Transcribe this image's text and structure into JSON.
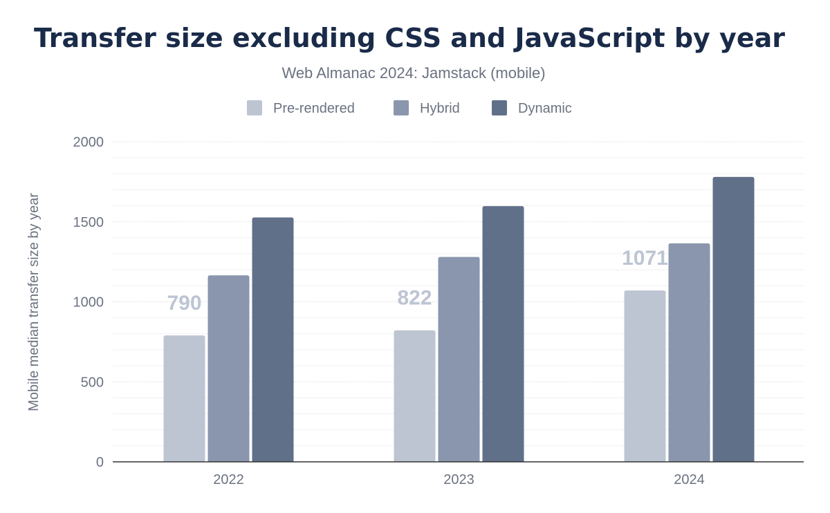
{
  "chart_data": {
    "type": "bar",
    "title": "Transfer size excluding CSS and JavaScript by year",
    "subtitle": "Web Almanac 2024: Jamstack (mobile)",
    "xlabel": "",
    "ylabel": "Mobile median transfer size by year",
    "ylim": [
      0,
      2000
    ],
    "yticks": [
      0,
      500,
      1000,
      1500,
      2000
    ],
    "grid": true,
    "legend_position": "top",
    "categories": [
      "2022",
      "2023",
      "2024"
    ],
    "series": [
      {
        "name": "Pre-rendered",
        "color": "#bdc5d3",
        "values": [
          790,
          822,
          1071
        ],
        "labels_shown": true
      },
      {
        "name": "Hybrid",
        "color": "#8a96ad",
        "values": [
          1165,
          1280,
          1365
        ],
        "labels_shown": false
      },
      {
        "name": "Dynamic",
        "color": "#617089",
        "values": [
          1527,
          1598,
          1780
        ],
        "labels_shown": false
      }
    ]
  }
}
